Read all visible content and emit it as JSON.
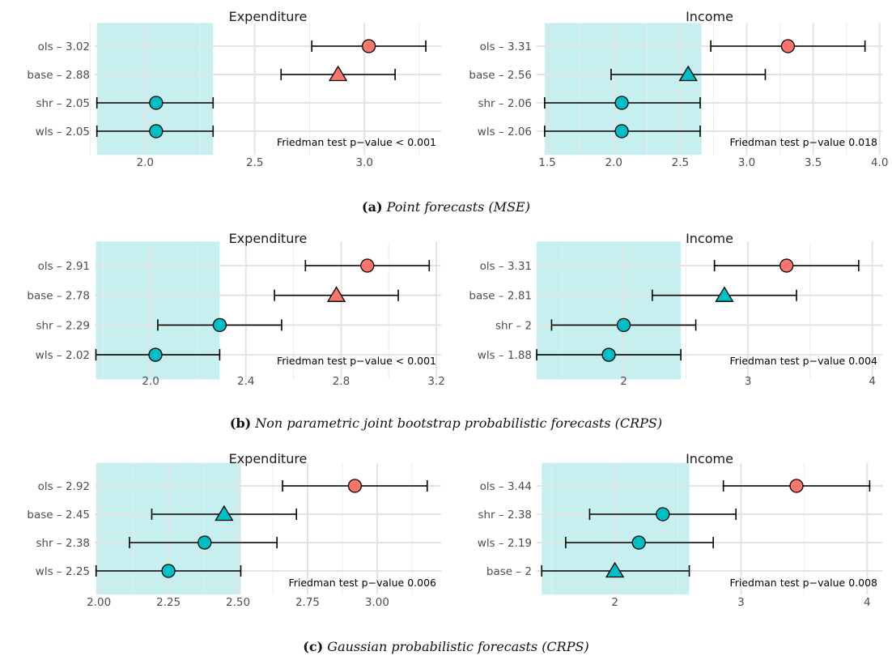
{
  "colors": {
    "red": "#f8766d",
    "teal": "#00bfc4",
    "band": "#c7eff0",
    "grid": "#ebebeb",
    "line": "#000000"
  },
  "chart_data": [
    {
      "type": "scatter",
      "title": "Expenditure",
      "caption_id": "a",
      "xlim": [
        1.77,
        3.35
      ],
      "xticks": [
        2.0,
        2.5,
        3.0
      ],
      "xtick_labels": [
        "2.0",
        "2.5",
        "3.0"
      ],
      "minor_ticks": [
        1.75,
        2.25,
        2.75,
        3.25
      ],
      "ci_band": [
        1.78,
        2.31
      ],
      "rows": [
        {
          "label": "ols – 3.02",
          "value": 3.02,
          "ci": [
            2.76,
            3.28
          ],
          "shape": "circle",
          "color": "red"
        },
        {
          "label": "base – 2.88",
          "value": 2.88,
          "ci": [
            2.62,
            3.14
          ],
          "shape": "triangle",
          "color": "red"
        },
        {
          "label": "shr – 2.05",
          "value": 2.05,
          "ci": [
            1.78,
            2.31
          ],
          "shape": "circle",
          "color": "teal"
        },
        {
          "label": "wls – 2.05",
          "value": 2.05,
          "ci": [
            1.78,
            2.31
          ],
          "shape": "circle",
          "color": "teal"
        }
      ],
      "pvalue_text": "Friedman test p−value  < 0.001"
    },
    {
      "type": "scatter",
      "title": "Income",
      "caption_id": "a",
      "xlim": [
        1.42,
        4.02
      ],
      "xticks": [
        1.5,
        2.0,
        2.5,
        3.0,
        3.5,
        4.0
      ],
      "xtick_labels": [
        "1.5",
        "2.0",
        "2.5",
        "3.0",
        "3.5",
        "4.0"
      ],
      "minor_ticks": [
        1.75,
        2.25,
        2.75,
        3.25,
        3.75
      ],
      "ci_band": [
        1.48,
        2.66
      ],
      "rows": [
        {
          "label": "ols – 3.31",
          "value": 3.31,
          "ci": [
            2.73,
            3.89
          ],
          "shape": "circle",
          "color": "red"
        },
        {
          "label": "base – 2.56",
          "value": 2.56,
          "ci": [
            1.98,
            3.14
          ],
          "shape": "triangle",
          "color": "teal"
        },
        {
          "label": "shr – 2.06",
          "value": 2.06,
          "ci": [
            1.48,
            2.65
          ],
          "shape": "circle",
          "color": "teal"
        },
        {
          "label": "wls – 2.06",
          "value": 2.06,
          "ci": [
            1.48,
            2.65
          ],
          "shape": "circle",
          "color": "teal"
        }
      ],
      "pvalue_text": "Friedman test p−value 0.018"
    },
    {
      "type": "scatter",
      "title": "Expenditure",
      "caption_id": "b",
      "xlim": [
        1.765,
        3.22
      ],
      "xticks": [
        2.0,
        2.4,
        2.8,
        3.2
      ],
      "xtick_labels": [
        "2.0",
        "2.4",
        "2.8",
        "3.2"
      ],
      "minor_ticks": [
        1.8,
        2.2,
        2.6,
        3.0
      ],
      "ci_band": [
        1.77,
        2.29
      ],
      "rows": [
        {
          "label": "ols – 2.91",
          "value": 2.91,
          "ci": [
            2.65,
            3.17
          ],
          "shape": "circle",
          "color": "red"
        },
        {
          "label": "base – 2.78",
          "value": 2.78,
          "ci": [
            2.52,
            3.04
          ],
          "shape": "triangle",
          "color": "red"
        },
        {
          "label": "shr – 2.29",
          "value": 2.29,
          "ci": [
            2.03,
            2.55
          ],
          "shape": "circle",
          "color": "teal"
        },
        {
          "label": "wls – 2.02",
          "value": 2.02,
          "ci": [
            1.77,
            2.29
          ],
          "shape": "circle",
          "color": "teal"
        }
      ],
      "pvalue_text": "Friedman test p−value  < 0.001"
    },
    {
      "type": "scatter",
      "title": "Income",
      "caption_id": "b",
      "xlim": [
        1.3,
        4.08
      ],
      "xticks": [
        2,
        3,
        4
      ],
      "xtick_labels": [
        "2",
        "3",
        "4"
      ],
      "minor_ticks": [
        1.5,
        2.5,
        3.5
      ],
      "ci_band": [
        1.3,
        2.46
      ],
      "rows": [
        {
          "label": "ols – 3.31",
          "value": 3.31,
          "ci": [
            2.73,
            3.89
          ],
          "shape": "circle",
          "color": "red"
        },
        {
          "label": "base – 2.81",
          "value": 2.81,
          "ci": [
            2.23,
            3.39
          ],
          "shape": "triangle",
          "color": "teal"
        },
        {
          "label": "shr – 2",
          "value": 2.0,
          "ci": [
            1.42,
            2.58
          ],
          "shape": "circle",
          "color": "teal"
        },
        {
          "label": "wls – 1.88",
          "value": 1.88,
          "ci": [
            1.3,
            2.46
          ],
          "shape": "circle",
          "color": "teal"
        }
      ],
      "pvalue_text": "Friedman test p−value 0.004"
    },
    {
      "type": "scatter",
      "title": "Expenditure",
      "caption_id": "c",
      "xlim": [
        1.985,
        3.23
      ],
      "xticks": [
        2.0,
        2.25,
        2.5,
        2.75,
        3.0
      ],
      "xtick_labels": [
        "2.00",
        "2.25",
        "2.50",
        "2.75",
        "3.00"
      ],
      "minor_ticks": [
        2.125,
        2.375,
        2.625,
        2.875,
        3.125
      ],
      "ci_band": [
        1.99,
        2.51
      ],
      "rows": [
        {
          "label": "ols – 2.92",
          "value": 2.92,
          "ci": [
            2.66,
            3.18
          ],
          "shape": "circle",
          "color": "red"
        },
        {
          "label": "base – 2.45",
          "value": 2.45,
          "ci": [
            2.19,
            2.71
          ],
          "shape": "triangle",
          "color": "teal"
        },
        {
          "label": "shr – 2.38",
          "value": 2.38,
          "ci": [
            2.11,
            2.64
          ],
          "shape": "circle",
          "color": "teal"
        },
        {
          "label": "wls – 2.25",
          "value": 2.25,
          "ci": [
            1.99,
            2.51
          ],
          "shape": "circle",
          "color": "teal"
        }
      ],
      "pvalue_text": "Friedman test p−value 0.006"
    },
    {
      "type": "scatter",
      "title": "Income",
      "caption_id": "c",
      "xlim": [
        1.38,
        4.12
      ],
      "xticks": [
        2,
        3,
        4
      ],
      "xtick_labels": [
        "2",
        "3",
        "4"
      ],
      "minor_ticks": [
        1.5,
        2.5,
        3.5
      ],
      "ci_band": [
        1.42,
        2.59
      ],
      "rows": [
        {
          "label": "ols – 3.44",
          "value": 3.44,
          "ci": [
            2.86,
            4.02
          ],
          "shape": "circle",
          "color": "red"
        },
        {
          "label": "shr – 2.38",
          "value": 2.38,
          "ci": [
            1.8,
            2.96
          ],
          "shape": "circle",
          "color": "teal"
        },
        {
          "label": "wls – 2.19",
          "value": 2.19,
          "ci": [
            1.61,
            2.78
          ],
          "shape": "circle",
          "color": "teal"
        },
        {
          "label": "base – 2",
          "value": 2.0,
          "ci": [
            1.42,
            2.59
          ],
          "shape": "triangle",
          "color": "teal"
        }
      ],
      "pvalue_text": "Friedman test p−value 0.008"
    }
  ],
  "captions": [
    {
      "tag": "(a)",
      "text": "Point forecasts (MSE)"
    },
    {
      "tag": "(b)",
      "text": "Non parametric joint bootstrap probabilistic forecasts (CRPS)"
    },
    {
      "tag": "(c)",
      "text": "Gaussian probabilistic forecasts (CRPS)"
    }
  ]
}
